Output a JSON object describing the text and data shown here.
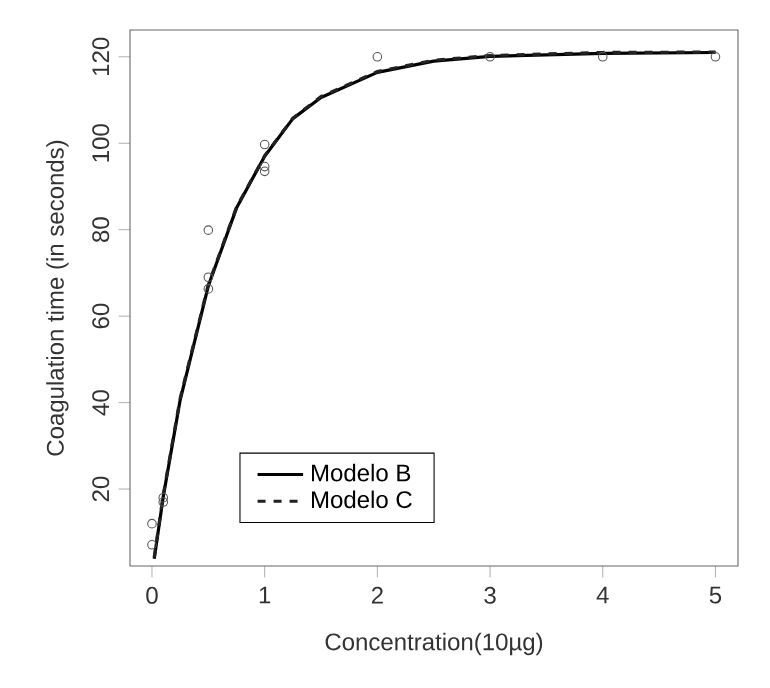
{
  "chart_data": {
    "type": "line",
    "xlabel": "Concentration(10µg)",
    "ylabel": "Coagulation time (in seconds)",
    "xlim": [
      -0.195,
      5.2
    ],
    "ylim": [
      2.2,
      126.2
    ],
    "xticks": [
      0,
      1,
      2,
      3,
      4,
      5
    ],
    "yticks": [
      20,
      40,
      60,
      80,
      100,
      120
    ],
    "grid": false,
    "legend": "bottom",
    "series": [
      {
        "type": "scatter",
        "marker": "circle",
        "color": "#555555",
        "x": [
          0,
          0,
          0.1,
          0.1,
          0.5,
          0.5,
          0.5,
          1,
          1,
          1,
          2,
          3,
          4,
          5
        ],
        "values": [
          7.1,
          12,
          17,
          18,
          79.9,
          69,
          66.3,
          99.7,
          94.6,
          93.5,
          120,
          120,
          120,
          120
        ]
      },
      {
        "name": "Modelo B",
        "color": "#000000",
        "line_style": "solid",
        "marker": "none",
        "x": [
          0.02,
          0.1,
          0.25,
          0.5,
          0.75,
          1,
          1.25,
          1.5,
          2,
          2.5,
          3,
          4,
          5
        ],
        "values": [
          3.9,
          18.2,
          40.6,
          67,
          85,
          97,
          105.7,
          110.6,
          116.4,
          119,
          120.1,
          120.8,
          121
        ]
      },
      {
        "name": "Modelo C",
        "color": "#222222",
        "line_style": "dashed",
        "marker": "none",
        "x": [
          0.02,
          0.1,
          0.25,
          0.5,
          0.75,
          1,
          1.25,
          1.5,
          2,
          2.5,
          3,
          4,
          5
        ],
        "values": [
          4.2,
          18.6,
          41,
          67.3,
          85.2,
          97.1,
          105.8,
          110.8,
          116.6,
          119.2,
          120.3,
          121,
          121.1
        ]
      }
    ]
  }
}
